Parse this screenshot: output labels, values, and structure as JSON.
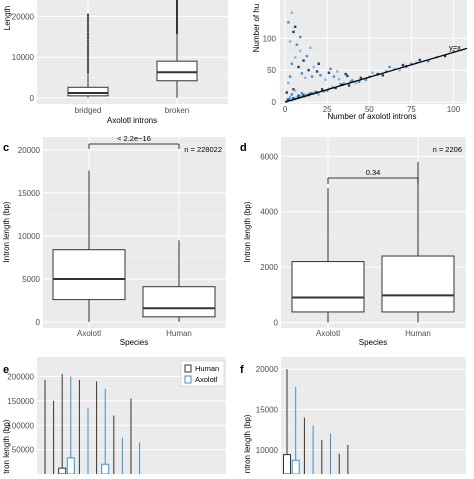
{
  "panels": {
    "a": {
      "ylabel": "Length",
      "xlabel": "Axolotl introns",
      "chart_data": {
        "type": "box",
        "categories": [
          "bridged",
          "broken"
        ],
        "ylim": [
          -1500,
          24000
        ],
        "yticks": [
          0,
          10000,
          20000
        ],
        "boxes": [
          {
            "name": "bridged",
            "whisker_low": 0,
            "q1": 500,
            "median": 1200,
            "q3": 2600,
            "whisker_high": 6200,
            "outliers_to": 20500
          },
          {
            "name": "broken",
            "whisker_low": 0,
            "q1": 4200,
            "median": 6300,
            "q3": 9000,
            "whisker_high": 15800,
            "outliers_to": 24000
          }
        ]
      }
    },
    "b": {
      "ylabel": "Number of hu",
      "xlabel": "Number of axolotl introns",
      "line_label": "y=x",
      "chart_data": {
        "type": "scatter",
        "xlim": [
          -3,
          108
        ],
        "ylim": [
          -3,
          160
        ],
        "xticks": [
          0,
          25,
          50,
          75,
          100
        ],
        "yticks": [
          0,
          50,
          100
        ],
        "reference_line": "y=x",
        "points": [
          [
            1,
            2
          ],
          [
            2,
            5
          ],
          [
            3,
            8
          ],
          [
            1,
            15
          ],
          [
            4,
            12
          ],
          [
            2,
            30
          ],
          [
            5,
            20
          ],
          [
            3,
            40
          ],
          [
            6,
            18
          ],
          [
            8,
            10
          ],
          [
            10,
            14
          ],
          [
            12,
            9
          ],
          [
            15,
            13
          ],
          [
            18,
            16
          ],
          [
            20,
            12
          ],
          [
            22,
            20
          ],
          [
            25,
            18
          ],
          [
            28,
            24
          ],
          [
            30,
            22
          ],
          [
            33,
            28
          ],
          [
            35,
            30
          ],
          [
            38,
            26
          ],
          [
            40,
            34
          ],
          [
            42,
            30
          ],
          [
            45,
            38
          ],
          [
            48,
            35
          ],
          [
            50,
            40
          ],
          [
            55,
            44
          ],
          [
            60,
            48
          ],
          [
            65,
            52
          ],
          [
            70,
            58
          ],
          [
            75,
            60
          ],
          [
            78,
            62
          ],
          [
            80,
            66
          ],
          [
            4,
            60
          ],
          [
            6,
            70
          ],
          [
            8,
            55
          ],
          [
            10,
            45
          ],
          [
            12,
            38
          ],
          [
            14,
            50
          ],
          [
            16,
            40
          ],
          [
            3,
            95
          ],
          [
            5,
            110
          ],
          [
            7,
            90
          ],
          [
            9,
            80
          ],
          [
            11,
            65
          ],
          [
            13,
            72
          ],
          [
            17,
            55
          ],
          [
            19,
            48
          ],
          [
            21,
            42
          ],
          [
            24,
            35
          ],
          [
            26,
            46
          ],
          [
            29,
            40
          ],
          [
            32,
            36
          ],
          [
            36,
            44
          ],
          [
            2,
            125
          ],
          [
            4,
            140
          ],
          [
            6,
            118
          ],
          [
            9,
            102
          ],
          [
            15,
            85
          ],
          [
            20,
            60
          ],
          [
            27,
            52
          ],
          [
            31,
            48
          ],
          [
            37,
            41
          ],
          [
            44,
            32
          ],
          [
            52,
            46
          ],
          [
            58,
            42
          ],
          [
            62,
            55
          ],
          [
            68,
            50
          ],
          [
            72,
            56
          ],
          [
            85,
            64
          ],
          [
            90,
            70
          ],
          [
            95,
            72
          ],
          [
            100,
            80
          ],
          [
            1,
            1
          ],
          [
            2,
            3
          ],
          [
            3,
            4
          ],
          [
            4,
            3
          ],
          [
            5,
            6
          ],
          [
            6,
            5
          ],
          [
            7,
            8
          ],
          [
            8,
            7
          ],
          [
            9,
            9
          ],
          [
            10,
            8
          ],
          [
            11,
            11
          ],
          [
            12,
            10
          ],
          [
            13,
            12
          ],
          [
            14,
            11
          ],
          [
            16,
            14
          ],
          [
            17,
            13
          ],
          [
            19,
            15
          ],
          [
            23,
            17
          ],
          [
            26,
            21
          ],
          [
            34,
            27
          ],
          [
            39,
            32
          ]
        ]
      }
    },
    "c": {
      "letter": "c",
      "ylabel": "Intron length (bp)",
      "xlabel": "Species",
      "pvalue": "< 2.2e−16",
      "n": "n = 228022",
      "chart_data": {
        "type": "box",
        "categories": [
          "Axolotl",
          "Human"
        ],
        "ylim": [
          -700,
          21500
        ],
        "yticks": [
          0,
          5000,
          10000,
          15000,
          20000
        ],
        "boxes": [
          {
            "name": "Axolotl",
            "whisker_low": 0,
            "q1": 2600,
            "median": 5000,
            "q3": 8400,
            "whisker_high": 17600
          },
          {
            "name": "Human",
            "whisker_low": 0,
            "q1": 600,
            "median": 1600,
            "q3": 4100,
            "whisker_high": 9500
          }
        ]
      }
    },
    "d": {
      "letter": "d",
      "ylabel": "Intron length (bp)",
      "xlabel": "Species",
      "pvalue": "0.34",
      "n": "n = 2206",
      "chart_data": {
        "type": "box",
        "categories": [
          "Axolotl",
          "Human"
        ],
        "ylim": [
          -200,
          6700
        ],
        "yticks": [
          0,
          2000,
          4000,
          6000
        ],
        "boxes": [
          {
            "name": "Axolotl",
            "whisker_low": 0,
            "q1": 380,
            "median": 900,
            "q3": 2200,
            "whisker_high": 4850
          },
          {
            "name": "Human",
            "whisker_low": 0,
            "q1": 380,
            "median": 980,
            "q3": 2400,
            "whisker_high": 5800
          }
        ]
      }
    },
    "e": {
      "letter": "e",
      "ylabel": "Intron length (bp)",
      "legend": [
        "Human",
        "Axolotl"
      ],
      "colors": {
        "Human": "#333333",
        "Axolotl": "#3c8fd6"
      },
      "chart_data": {
        "type": "box",
        "ylim": [
          0,
          240000
        ],
        "yticks": [
          50000,
          100000,
          150000,
          200000
        ],
        "boxes": [
          {
            "x": 0,
            "series": "Human",
            "q3": 0,
            "whisker_high": 193000
          },
          {
            "x": 1,
            "series": "Human",
            "q3": 0,
            "whisker_high": 150000
          },
          {
            "x": 2,
            "series": "Human",
            "q3": 12000,
            "whisker_high": 205000
          },
          {
            "x": 3,
            "series": "Axolotl",
            "q3": 33000,
            "whisker_high": 200000
          },
          {
            "x": 4,
            "series": "Human",
            "q3": 0,
            "whisker_high": 193000
          },
          {
            "x": 5,
            "series": "Axolotl",
            "q3": 0,
            "whisker_high": 135000
          },
          {
            "x": 6,
            "series": "Human",
            "q3": 0,
            "whisker_high": 190000
          },
          {
            "x": 7,
            "series": "Axolotl",
            "q3": 20000,
            "whisker_high": 175000
          },
          {
            "x": 8,
            "series": "Human",
            "q3": 0,
            "whisker_high": 120000
          },
          {
            "x": 9,
            "series": "Axolotl",
            "q3": 0,
            "whisker_high": 75000
          },
          {
            "x": 10,
            "series": "Human",
            "q3": 0,
            "whisker_high": 155000
          },
          {
            "x": 11,
            "series": "Axolotl",
            "q3": 0,
            "whisker_high": 65000
          }
        ]
      }
    },
    "f": {
      "letter": "f",
      "ylabel": "Intron length (bp)",
      "chart_data": {
        "type": "box",
        "ylim": [
          7000,
          21500
        ],
        "yticks": [
          10000,
          15000,
          20000
        ],
        "boxes": [
          {
            "x": 0,
            "series": "Human",
            "q3": 9400,
            "whisker_high": 20000
          },
          {
            "x": 1,
            "series": "Axolotl",
            "q3": 8700,
            "whisker_high": 17800
          },
          {
            "x": 2,
            "series": "Human",
            "q3": 7000,
            "whisker_high": 14000
          },
          {
            "x": 3,
            "series": "Axolotl",
            "q3": 7000,
            "whisker_high": 13000
          },
          {
            "x": 4,
            "series": "Human",
            "q3": 7000,
            "whisker_high": 11200
          },
          {
            "x": 5,
            "series": "Axolotl",
            "q3": 7000,
            "whisker_high": 12000
          },
          {
            "x": 6,
            "series": "Human",
            "q3": 7000,
            "whisker_high": 9500
          },
          {
            "x": 7,
            "series": "Human",
            "q3": 7000,
            "whisker_high": 10600
          }
        ]
      }
    }
  }
}
